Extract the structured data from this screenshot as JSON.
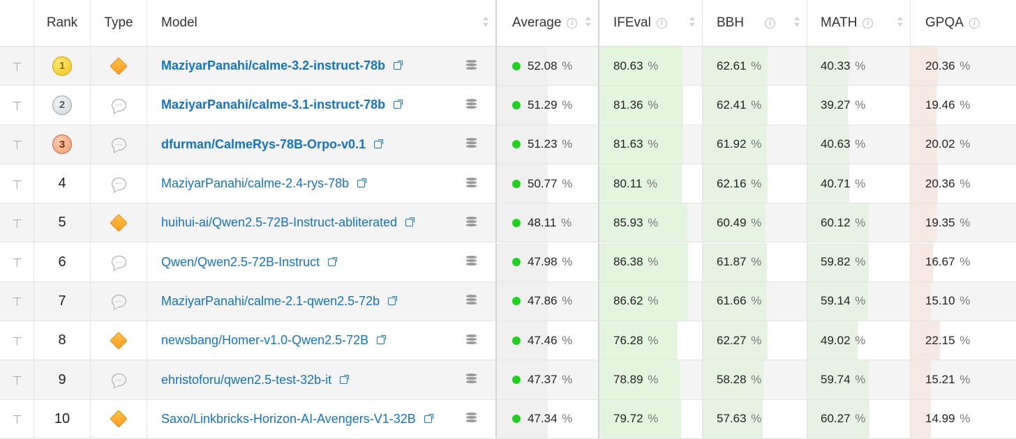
{
  "columns": {
    "rank": "Rank",
    "type": "Type",
    "model": "Model",
    "average": "Average",
    "ifeval": "IFEval",
    "bbh": "BBH",
    "math": "MATH",
    "gpqa": "GPQA"
  },
  "percent_sign": "%",
  "rows": [
    {
      "rank": "1",
      "medal": "gold",
      "type": "diamond-icon",
      "model": "MaziyarPanahi/calme-3.2-instruct-78b",
      "bold": true,
      "average": "52.08",
      "ifeval": "80.63",
      "bbh": "62.61",
      "math": "40.33",
      "gpqa": "20.36"
    },
    {
      "rank": "2",
      "medal": "silver",
      "type": "chat-icon",
      "model": "MaziyarPanahi/calme-3.1-instruct-78b",
      "bold": true,
      "average": "51.29",
      "ifeval": "81.36",
      "bbh": "62.41",
      "math": "39.27",
      "gpqa": "19.46"
    },
    {
      "rank": "3",
      "medal": "bronze",
      "type": "chat-icon",
      "model": "dfurman/CalmeRys-78B-Orpo-v0.1",
      "bold": true,
      "average": "51.23",
      "ifeval": "81.63",
      "bbh": "61.92",
      "math": "40.63",
      "gpqa": "20.02"
    },
    {
      "rank": "4",
      "medal": "",
      "type": "chat-icon",
      "model": "MaziyarPanahi/calme-2.4-rys-78b",
      "bold": false,
      "average": "50.77",
      "ifeval": "80.11",
      "bbh": "62.16",
      "math": "40.71",
      "gpqa": "20.36"
    },
    {
      "rank": "5",
      "medal": "",
      "type": "diamond-icon",
      "model": "huihui-ai/Qwen2.5-72B-Instruct-abliterated",
      "bold": false,
      "average": "48.11",
      "ifeval": "85.93",
      "bbh": "60.49",
      "math": "60.12",
      "gpqa": "19.35"
    },
    {
      "rank": "6",
      "medal": "",
      "type": "chat-icon",
      "model": "Qwen/Qwen2.5-72B-Instruct",
      "bold": false,
      "average": "47.98",
      "ifeval": "86.38",
      "bbh": "61.87",
      "math": "59.82",
      "gpqa": "16.67"
    },
    {
      "rank": "7",
      "medal": "",
      "type": "chat-icon",
      "model": "MaziyarPanahi/calme-2.1-qwen2.5-72b",
      "bold": false,
      "average": "47.86",
      "ifeval": "86.62",
      "bbh": "61.66",
      "math": "59.14",
      "gpqa": "15.10"
    },
    {
      "rank": "8",
      "medal": "",
      "type": "diamond-icon",
      "model": "newsbang/Homer-v1.0-Qwen2.5-72B",
      "bold": false,
      "average": "47.46",
      "ifeval": "76.28",
      "bbh": "62.27",
      "math": "49.02",
      "gpqa": "22.15"
    },
    {
      "rank": "9",
      "medal": "",
      "type": "chat-icon",
      "model": "ehristoforu/qwen2.5-test-32b-it",
      "bold": false,
      "average": "47.37",
      "ifeval": "78.89",
      "bbh": "58.28",
      "math": "59.74",
      "gpqa": "15.21"
    },
    {
      "rank": "10",
      "medal": "",
      "type": "diamond-icon",
      "model": "Saxo/Linkbricks-Horizon-AI-Avengers-V1-32B",
      "bold": false,
      "average": "47.34",
      "ifeval": "79.72",
      "bbh": "57.63",
      "math": "60.27",
      "gpqa": "14.99"
    }
  ],
  "colors": {
    "link": "#1474c4",
    "avg_bar": "#f0f0f0",
    "ifeval_bar": "#e3f5df",
    "bbh_bar": "#e6f3e2",
    "math_bar": "#e7f2e4",
    "gpqa_bar": "#f6e9e4",
    "status_dot": "#22d022"
  }
}
